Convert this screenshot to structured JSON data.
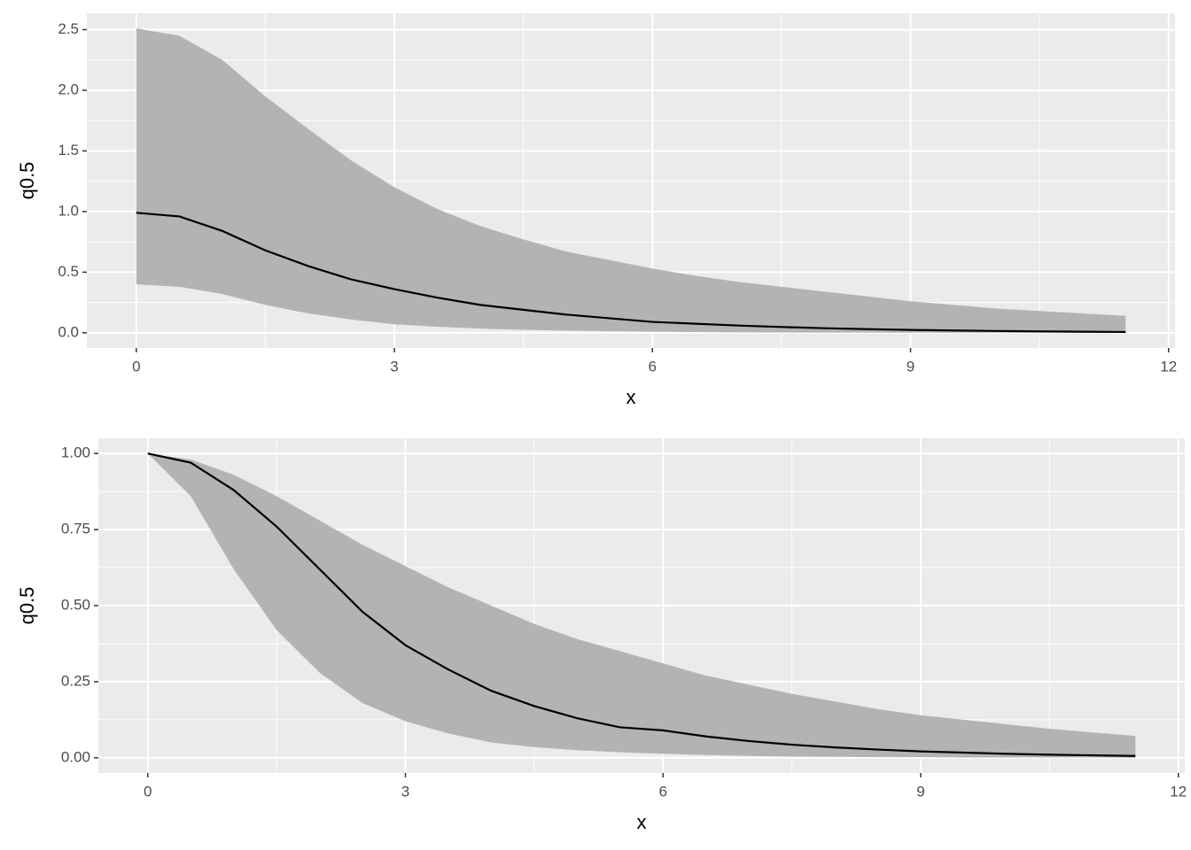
{
  "chart_data": [
    {
      "type": "ribbon-line",
      "xlabel": "x",
      "ylabel": "q0.5",
      "x": [
        0,
        0.5,
        1,
        1.5,
        2,
        2.5,
        3,
        3.5,
        4,
        4.5,
        5,
        5.5,
        6,
        6.5,
        7,
        7.5,
        8,
        8.5,
        9,
        9.5,
        10,
        10.5,
        11,
        11.5
      ],
      "values": [
        0.99,
        0.96,
        0.84,
        0.68,
        0.55,
        0.44,
        0.36,
        0.29,
        0.23,
        0.19,
        0.15,
        0.12,
        0.09,
        0.075,
        0.06,
        0.048,
        0.038,
        0.03,
        0.024,
        0.019,
        0.015,
        0.012,
        0.009,
        0.007
      ],
      "upper": [
        2.51,
        2.45,
        2.25,
        1.95,
        1.68,
        1.42,
        1.2,
        1.02,
        0.88,
        0.77,
        0.67,
        0.6,
        0.53,
        0.47,
        0.42,
        0.38,
        0.34,
        0.3,
        0.26,
        0.23,
        0.2,
        0.18,
        0.16,
        0.14
      ],
      "lower": [
        0.4,
        0.38,
        0.32,
        0.23,
        0.16,
        0.11,
        0.07,
        0.05,
        0.035,
        0.025,
        0.018,
        0.013,
        0.009,
        0.006,
        0.004,
        0.003,
        0.002,
        0.002,
        0.001,
        0.001,
        0.001,
        0.001,
        0,
        0
      ],
      "color": "#000000",
      "ribbon_color": "#b3b3b3",
      "xlim": [
        -0.575,
        12.075
      ],
      "ylim": [
        -0.125,
        2.635
      ],
      "xticks": [
        0,
        3,
        6,
        9,
        12
      ],
      "yticks": [
        {
          "value": 0,
          "label": "0.0"
        },
        0.5,
        {
          "value": 1,
          "label": "1.0"
        },
        1.5,
        {
          "value": 2,
          "label": "2.0"
        },
        2.5
      ],
      "grid": true
    },
    {
      "type": "ribbon-line",
      "xlabel": "x",
      "ylabel": "q0.5",
      "x": [
        0,
        0.5,
        1,
        1.5,
        2,
        2.5,
        3,
        3.5,
        4,
        4.5,
        5,
        5.5,
        6,
        6.5,
        7,
        7.5,
        8,
        8.5,
        9,
        9.5,
        10,
        10.5,
        11,
        11.5
      ],
      "values": [
        1,
        0.97,
        0.88,
        0.76,
        0.62,
        0.48,
        0.37,
        0.29,
        0.22,
        0.17,
        0.13,
        0.1,
        0.09,
        0.07,
        0.055,
        0.043,
        0.034,
        0.027,
        0.021,
        0.017,
        0.013,
        0.01,
        0.008,
        0.006
      ],
      "upper": [
        1,
        0.98,
        0.93,
        0.86,
        0.78,
        0.7,
        0.63,
        0.56,
        0.5,
        0.44,
        0.39,
        0.35,
        0.31,
        0.27,
        0.24,
        0.21,
        0.185,
        0.16,
        0.14,
        0.125,
        0.11,
        0.095,
        0.083,
        0.072
      ],
      "lower": [
        1,
        0.86,
        0.62,
        0.42,
        0.28,
        0.18,
        0.12,
        0.08,
        0.05,
        0.035,
        0.025,
        0.018,
        0.013,
        0.009,
        0.006,
        0.004,
        0.003,
        0.002,
        0.002,
        0.001,
        0.001,
        0.001,
        0.001,
        0
      ],
      "color": "#000000",
      "ribbon_color": "#b3b3b3",
      "xlim": [
        -0.575,
        12.075
      ],
      "ylim": [
        -0.05,
        1.05
      ],
      "xticks": [
        0,
        3,
        6,
        9,
        12
      ],
      "yticks": [
        {
          "value": 0,
          "label": "0.00"
        },
        {
          "value": 0.25,
          "label": "0.25"
        },
        {
          "value": 0.5,
          "label": "0.50"
        },
        {
          "value": 0.75,
          "label": "0.75"
        },
        {
          "value": 1,
          "label": "1.00"
        }
      ],
      "grid": true
    }
  ]
}
